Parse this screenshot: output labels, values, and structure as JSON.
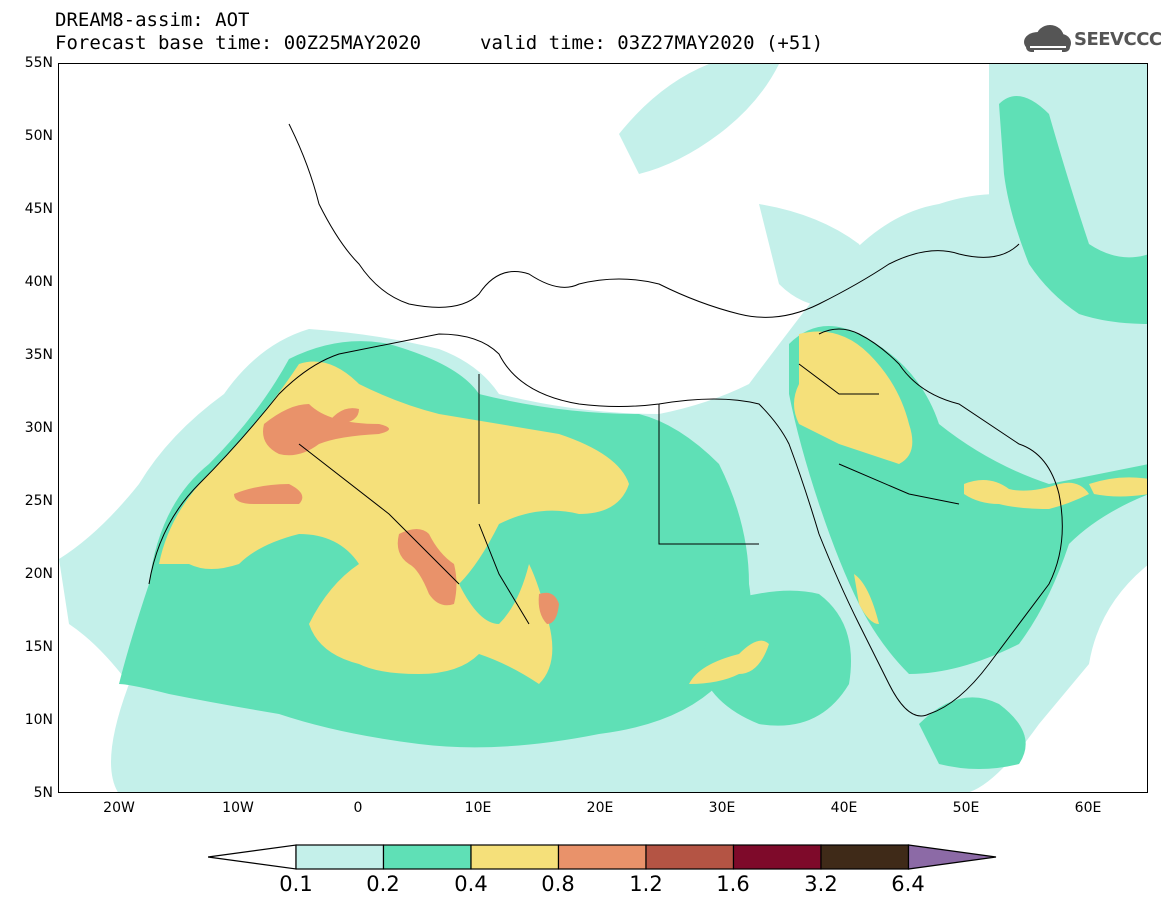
{
  "title": {
    "line1": "DREAM8-assim: AOT",
    "line2": "Forecast base time: 00Z25MAY2020",
    "valid": "valid time: 03Z27MAY2020 (+51)"
  },
  "logo": {
    "text": "SEEVCCC",
    "icon": "cloud-logo-icon"
  },
  "map": {
    "lat_labels": [
      "55N",
      "50N",
      "45N",
      "40N",
      "35N",
      "30N",
      "25N",
      "20N",
      "15N",
      "10N",
      "5N"
    ],
    "lon_labels": [
      "20W",
      "10W",
      "0",
      "10E",
      "20E",
      "30E",
      "40E",
      "50E",
      "60E"
    ],
    "lon_range": [
      -25,
      65
    ],
    "lat_range": [
      5,
      55
    ]
  },
  "colorbar": {
    "labels": [
      "0.1",
      "0.2",
      "0.4",
      "0.8",
      "1.2",
      "1.6",
      "3.2",
      "6.4"
    ],
    "colors": [
      "#ffffff",
      "#c4f0ea",
      "#5fe0b6",
      "#f5e07a",
      "#e9926a",
      "#b45444",
      "#7e0a2a",
      "#3f2a18",
      "#8c6aa6"
    ]
  },
  "colors": {
    "aot_01_02": "#c4f0ea",
    "aot_02_04": "#5fe0b6",
    "aot_04_08": "#f5e07a",
    "aot_08_12": "#e9926a",
    "aot_12_16": "#b45444"
  }
}
